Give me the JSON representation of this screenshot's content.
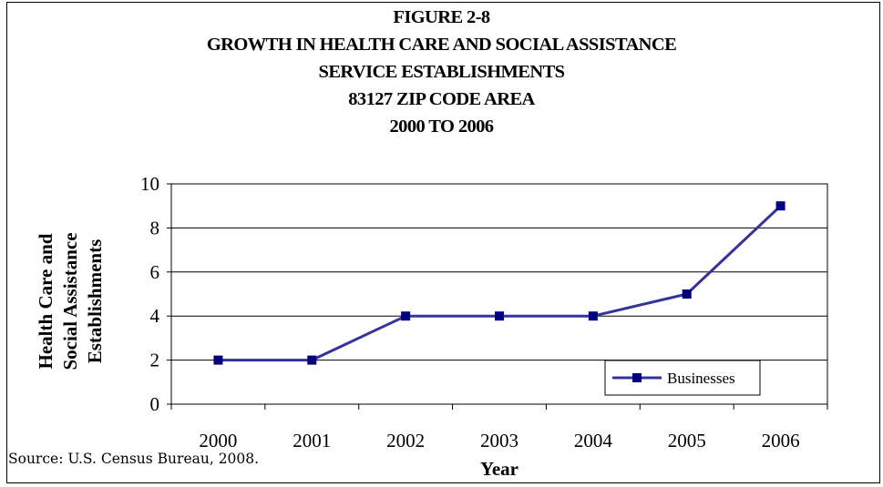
{
  "chart_data": {
    "type": "line",
    "title_lines": [
      "FIGURE 2-8",
      "GROWTH IN HEALTH CARE AND SOCIAL ASSISTANCE",
      "SERVICE ESTABLISHMENTS",
      "83127 ZIP CODE AREA",
      "2000 TO 2006"
    ],
    "x": [
      "2000",
      "2001",
      "2002",
      "2003",
      "2004",
      "2005",
      "2006"
    ],
    "series": [
      {
        "name": "Businesses",
        "values": [
          2,
          2,
          4,
          4,
          4,
          5,
          9
        ],
        "color": "#333399"
      }
    ],
    "xlabel": "Year",
    "ylabel_lines": [
      "Health Care and",
      "Social Assistance",
      "Establishments"
    ],
    "ylim": [
      0,
      10
    ],
    "yticks": [
      0,
      2,
      4,
      6,
      8,
      10
    ],
    "grid": "horizontal",
    "legend_position": "bottom-right"
  },
  "source": "Source: U.S. Census Bureau, 2008."
}
